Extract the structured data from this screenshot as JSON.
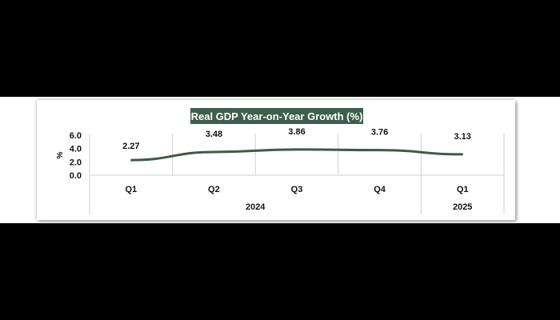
{
  "chart_data": {
    "type": "line",
    "title": "Real GDP Year-on-Year Growth (%)",
    "ylabel": "%",
    "xlabel": "",
    "ylim": [
      0,
      6
    ],
    "yticks": [
      "0.0",
      "2.0",
      "4.0",
      "6.0"
    ],
    "categories": [
      "Q1",
      "Q2",
      "Q3",
      "Q4",
      "Q1"
    ],
    "groups": [
      {
        "label": "2024",
        "span": 4
      },
      {
        "label": "2025",
        "span": 1
      }
    ],
    "values": [
      2.27,
      3.48,
      3.86,
      3.76,
      3.13
    ],
    "data_labels": [
      "2.27",
      "3.48",
      "3.86",
      "3.76",
      "3.13"
    ],
    "grid": false,
    "line_color": "#3e5a48",
    "title_bg": "#3d5f4b",
    "title_color": "#ffffff"
  }
}
